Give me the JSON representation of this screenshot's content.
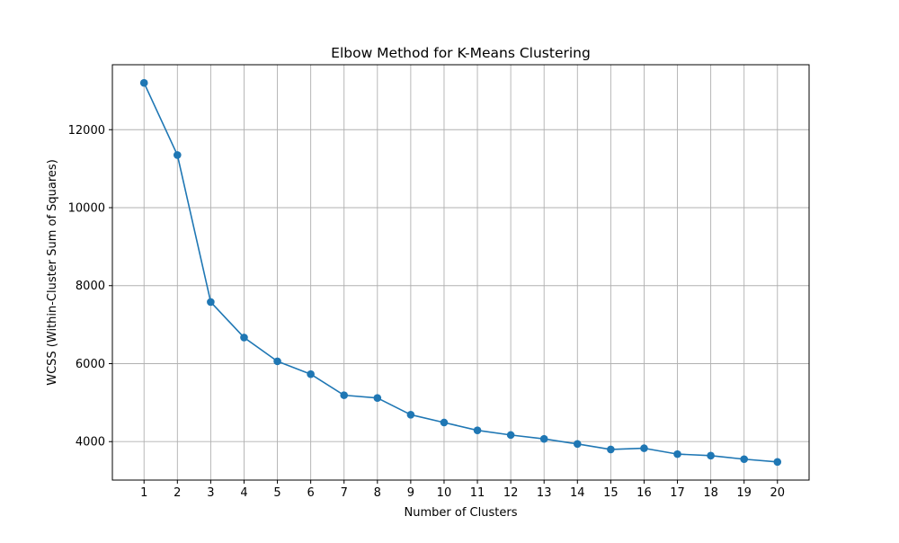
{
  "chart_data": {
    "type": "line",
    "title": "Elbow Method for K-Means Clustering",
    "xlabel": "Number of Clusters",
    "ylabel": "WCSS (Within-Cluster Sum of Squares)",
    "x": [
      1,
      2,
      3,
      4,
      5,
      6,
      7,
      8,
      9,
      10,
      11,
      12,
      13,
      14,
      15,
      16,
      17,
      18,
      19,
      20
    ],
    "series": [
      {
        "values": [
          13200,
          11350,
          7580,
          6670,
          6060,
          5730,
          5190,
          5120,
          4690,
          4490,
          4290,
          4170,
          4070,
          3940,
          3800,
          3830,
          3680,
          3640,
          3550,
          3480
        ],
        "color": "#1f77b4",
        "marker": "circle"
      }
    ],
    "xticks": [
      "1",
      "2",
      "3",
      "4",
      "5",
      "6",
      "7",
      "8",
      "9",
      "10",
      "11",
      "12",
      "13",
      "14",
      "15",
      "16",
      "17",
      "18",
      "19",
      "20"
    ],
    "yticks": [
      4000,
      6000,
      8000,
      10000,
      12000
    ],
    "ytick_labels": [
      "4000",
      "6000",
      "8000",
      "10000",
      "12000"
    ],
    "xlim": [
      0.05,
      20.95
    ],
    "ylim": [
      3014,
      13666
    ],
    "grid": true,
    "legend": "none"
  }
}
